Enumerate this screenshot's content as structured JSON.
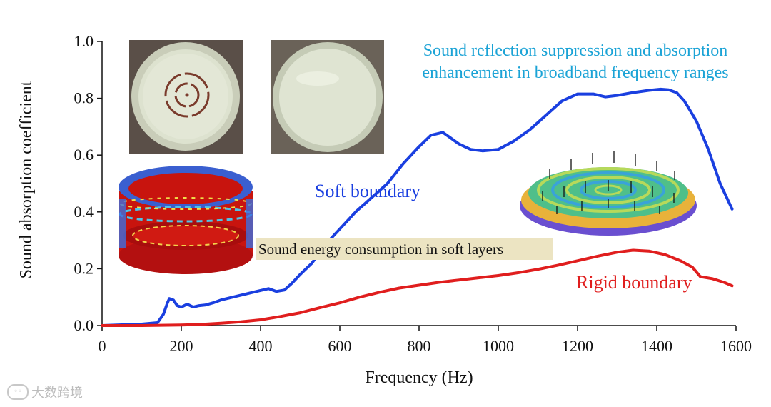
{
  "chart_data": {
    "type": "line",
    "xlabel": "Frequency (Hz)",
    "ylabel": "Sound absorption coefficient",
    "xlim": [
      0,
      1600
    ],
    "ylim": [
      0,
      1.0
    ],
    "x_ticks": [
      0,
      200,
      400,
      600,
      800,
      1000,
      1200,
      1400,
      1600
    ],
    "y_ticks": [
      0.0,
      0.2,
      0.4,
      0.6,
      0.8,
      1.0
    ],
    "x_tick_labels": [
      "0",
      "200",
      "400",
      "600",
      "800",
      "1000",
      "1200",
      "1400",
      "1600"
    ],
    "y_tick_labels": [
      "0.0",
      "0.2",
      "0.4",
      "0.6",
      "0.8",
      "1.0"
    ],
    "series": [
      {
        "name": "Soft boundary",
        "color": "#1a3fe0",
        "x": [
          0,
          100,
          140,
          155,
          165,
          170,
          180,
          190,
          200,
          215,
          230,
          245,
          260,
          280,
          300,
          330,
          360,
          390,
          420,
          440,
          460,
          480,
          500,
          530,
          560,
          600,
          640,
          680,
          720,
          760,
          800,
          830,
          860,
          880,
          900,
          930,
          960,
          1000,
          1040,
          1080,
          1120,
          1160,
          1200,
          1240,
          1270,
          1300,
          1340,
          1380,
          1410,
          1430,
          1450,
          1470,
          1500,
          1530,
          1560,
          1590
        ],
        "values": [
          0.0,
          0.005,
          0.01,
          0.04,
          0.08,
          0.095,
          0.09,
          0.07,
          0.065,
          0.075,
          0.065,
          0.07,
          0.072,
          0.08,
          0.09,
          0.1,
          0.11,
          0.12,
          0.13,
          0.12,
          0.125,
          0.15,
          0.18,
          0.22,
          0.28,
          0.34,
          0.4,
          0.45,
          0.5,
          0.57,
          0.63,
          0.67,
          0.68,
          0.66,
          0.64,
          0.62,
          0.615,
          0.62,
          0.65,
          0.69,
          0.74,
          0.79,
          0.815,
          0.815,
          0.805,
          0.81,
          0.82,
          0.828,
          0.832,
          0.83,
          0.82,
          0.79,
          0.72,
          0.62,
          0.5,
          0.41
        ]
      },
      {
        "name": "Rigid boundary",
        "color": "#e01e1e",
        "x": [
          0,
          100,
          200,
          250,
          300,
          350,
          400,
          450,
          500,
          550,
          600,
          650,
          700,
          750,
          800,
          850,
          900,
          950,
          1000,
          1050,
          1100,
          1150,
          1200,
          1250,
          1300,
          1340,
          1380,
          1420,
          1460,
          1490,
          1510,
          1540,
          1570,
          1590
        ],
        "values": [
          0.0,
          0.0,
          0.002,
          0.004,
          0.008,
          0.013,
          0.02,
          0.032,
          0.045,
          0.063,
          0.08,
          0.1,
          0.117,
          0.132,
          0.142,
          0.152,
          0.16,
          0.168,
          0.176,
          0.186,
          0.198,
          0.212,
          0.228,
          0.244,
          0.258,
          0.265,
          0.262,
          0.25,
          0.228,
          0.205,
          0.172,
          0.165,
          0.152,
          0.14
        ]
      }
    ],
    "annotations": {
      "top_right": [
        "Sound reflection suppression and absorption",
        "enhancement in broadband frequency ranges"
      ],
      "soft_label": "Soft boundary",
      "rigid_label": "Rigid boundary",
      "middle_box": "Sound energy consumption in soft layers"
    }
  },
  "colors": {
    "soft": "#1a3fe0",
    "rigid": "#e01e1e",
    "annotation_cyan": "#1ba3d6",
    "box_bg": "#ece4c2"
  },
  "watermark": "大数跨境"
}
